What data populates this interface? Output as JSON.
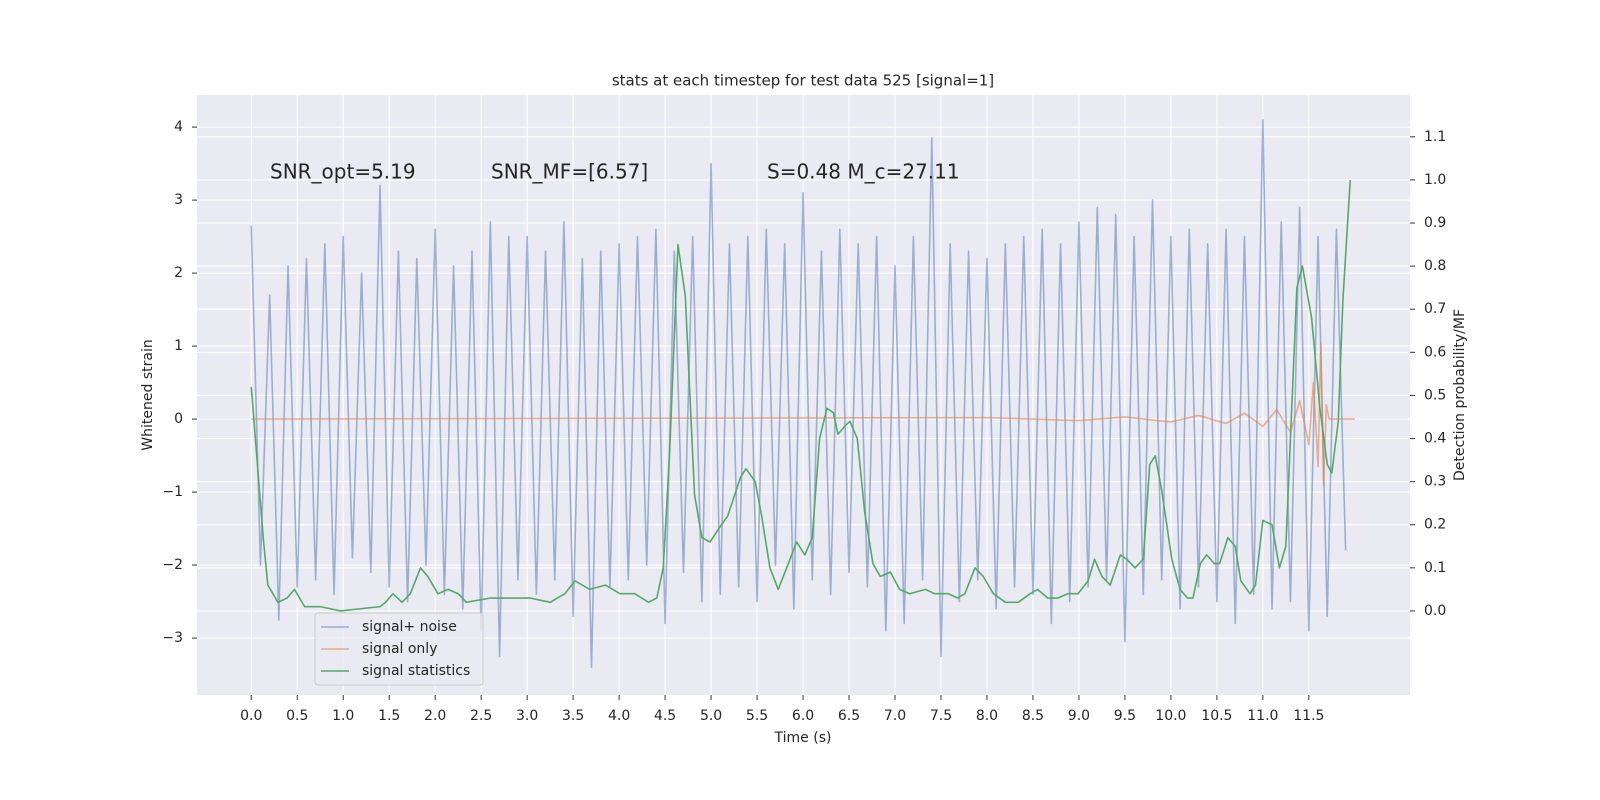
{
  "chart_data": {
    "type": "line",
    "title": "stats at each timestep for test data 525 [signal=1]",
    "x_label": "Time (s)",
    "y_label": "Whitened strain",
    "y2_label": "Detection probability/MF",
    "annotations": [
      "SNR_opt=5.19",
      "SNR_MF=[6.57]",
      "S=0.48   M_c=27.11"
    ],
    "xlim": [
      -0.59,
      12.6
    ],
    "ylim": [
      -3.78,
      4.44
    ],
    "y2lim": [
      -0.195,
      1.197
    ],
    "xticks": [
      {
        "value": 0,
        "label": "0.0"
      },
      0.5,
      {
        "value": 1,
        "label": "1.0"
      },
      1.5,
      {
        "value": 2,
        "label": "2.0"
      },
      2.5,
      {
        "value": 3,
        "label": "3.0"
      },
      3.5,
      {
        "value": 4,
        "label": "4.0"
      },
      4.5,
      {
        "value": 5,
        "label": "5.0"
      },
      5.5,
      {
        "value": 6,
        "label": "6.0"
      },
      6.5,
      {
        "value": 7,
        "label": "7.0"
      },
      7.5,
      {
        "value": 8,
        "label": "8.0"
      },
      8.5,
      {
        "value": 9,
        "label": "9.0"
      },
      9.5,
      {
        "value": 10,
        "label": "10.0"
      },
      10.5,
      {
        "value": 11,
        "label": "11.0"
      },
      11.5
    ],
    "yticks": [
      {
        "value": -3,
        "label": "−3"
      },
      {
        "value": -2,
        "label": "−2"
      },
      {
        "value": -1,
        "label": "−1"
      },
      0,
      1,
      2,
      3,
      4
    ],
    "y2ticks": [
      {
        "value": 0,
        "label": "0.0"
      },
      0.1,
      0.2,
      0.3,
      0.4,
      0.5,
      0.6,
      0.7,
      0.8,
      0.9,
      {
        "value": 1,
        "label": "1.0"
      },
      1.1
    ],
    "grid": true,
    "legend": "lower left",
    "series": [
      {
        "name": "signal+ noise",
        "color": "#4c72b0",
        "alpha": 0.5,
        "x": [
          0,
          0.1,
          0.2,
          0.3,
          0.4,
          0.5,
          0.6,
          0.7,
          0.8,
          0.9,
          1,
          1.1,
          1.2,
          1.3,
          1.4,
          1.5,
          1.6,
          1.7,
          1.8,
          1.9,
          2,
          2.1,
          2.2,
          2.3,
          2.4,
          2.5,
          2.6,
          2.7,
          2.8,
          2.9,
          3,
          3.1,
          3.2,
          3.3,
          3.4,
          3.5,
          3.6,
          3.7,
          3.8,
          3.9,
          4,
          4.1,
          4.2,
          4.3,
          4.4,
          4.5,
          4.6,
          4.7,
          4.8,
          4.9,
          5,
          5.1,
          5.2,
          5.3,
          5.4,
          5.5,
          5.6,
          5.7,
          5.8,
          5.9,
          6,
          6.1,
          6.2,
          6.3,
          6.4,
          6.5,
          6.6,
          6.7,
          6.8,
          6.9,
          7,
          7.1,
          7.2,
          7.3,
          7.4,
          7.5,
          7.6,
          7.7,
          7.8,
          7.9,
          8,
          8.1,
          8.2,
          8.3,
          8.4,
          8.5,
          8.6,
          8.7,
          8.8,
          8.9,
          9,
          9.1,
          9.2,
          9.3,
          9.4,
          9.5,
          9.6,
          9.7,
          9.8,
          9.9,
          10,
          10.1,
          10.2,
          10.3,
          10.4,
          10.5,
          10.6,
          10.7,
          10.8,
          10.9,
          11,
          11.1,
          11.2,
          11.3,
          11.4,
          11.5,
          11.6,
          11.7,
          11.8,
          11.9
        ],
        "values": [
          2.65,
          -2.0,
          1.7,
          -2.75,
          2.1,
          -2.3,
          2.2,
          -2.2,
          2.4,
          -2.4,
          2.5,
          -1.9,
          2.0,
          -2.1,
          3.2,
          -2.3,
          2.3,
          -2.5,
          2.2,
          -2.0,
          2.6,
          -2.4,
          2.1,
          -2.6,
          2.3,
          -2.9,
          2.7,
          -3.25,
          2.5,
          -2.2,
          2.5,
          -2.4,
          2.3,
          -2.2,
          2.7,
          -2.7,
          2.2,
          -3.4,
          2.3,
          -2.3,
          2.4,
          -2.2,
          2.5,
          -2.0,
          2.6,
          -2.8,
          2.3,
          -2.1,
          2.5,
          -2.5,
          3.5,
          -2.4,
          2.4,
          -2.3,
          2.5,
          -2.5,
          2.6,
          -2.0,
          2.4,
          -2.6,
          3.1,
          -2.2,
          2.3,
          -2.4,
          2.6,
          -2.1,
          2.4,
          -2.3,
          2.5,
          -2.9,
          2.1,
          -2.8,
          2.5,
          -2.2,
          3.85,
          -3.25,
          2.4,
          -2.5,
          2.3,
          -2.2,
          2.2,
          -2.6,
          2.4,
          -2.3,
          2.5,
          -2.4,
          2.6,
          -2.8,
          2.4,
          -2.5,
          2.7,
          -2.3,
          2.9,
          -2.2,
          2.8,
          -3.05,
          2.5,
          -2.4,
          3.0,
          -2.2,
          2.5,
          -2.6,
          2.6,
          -2.3,
          2.4,
          -2.5,
          2.6,
          -2.8,
          2.5,
          -2.4,
          4.1,
          -2.6,
          2.7,
          -2.5,
          2.9,
          -2.9,
          2.5,
          -2.7,
          2.6,
          -1.8
        ]
      },
      {
        "name": "signal only",
        "color": "#dd8452",
        "alpha": 0.6,
        "x": [
          0,
          8,
          9,
          9.5,
          10,
          10.3,
          10.6,
          10.8,
          11,
          11.15,
          11.3,
          11.4,
          11.5,
          11.55,
          11.6,
          11.63,
          11.66,
          11.69,
          11.72,
          11.8,
          12
        ],
        "values": [
          0,
          0.02,
          -0.02,
          0.03,
          -0.04,
          0.05,
          -0.06,
          0.08,
          -0.1,
          0.13,
          -0.18,
          0.25,
          -0.35,
          0.5,
          -0.65,
          1.05,
          -0.9,
          0.2,
          0,
          0,
          0
        ]
      },
      {
        "name": "signal statistics",
        "color": "#55a868",
        "alpha": 1,
        "axis": "y2",
        "x": [
          0,
          0.13,
          0.18,
          0.29,
          0.39,
          0.47,
          0.58,
          0.75,
          0.97,
          1.4,
          1.46,
          1.54,
          1.64,
          1.73,
          1.84,
          1.92,
          2.03,
          2.14,
          2.25,
          2.34,
          2.6,
          2.82,
          3.03,
          3.25,
          3.41,
          3.52,
          3.68,
          3.85,
          4.01,
          4.17,
          4.32,
          4.41,
          4.48,
          4.55,
          4.64,
          4.72,
          4.82,
          4.9,
          4.99,
          5.08,
          5.18,
          5.32,
          5.38,
          5.48,
          5.55,
          5.64,
          5.73,
          5.84,
          5.93,
          6.02,
          6.1,
          6.18,
          6.26,
          6.33,
          6.38,
          6.46,
          6.51,
          6.59,
          6.67,
          6.76,
          6.84,
          6.95,
          7.05,
          7.16,
          7.33,
          7.43,
          7.58,
          7.68,
          7.76,
          7.87,
          7.96,
          8.07,
          8.2,
          8.34,
          8.47,
          8.55,
          8.66,
          8.77,
          8.88,
          8.99,
          9.1,
          9.17,
          9.25,
          9.34,
          9.45,
          9.52,
          9.61,
          9.7,
          9.77,
          9.83,
          9.9,
          10.01,
          10.1,
          10.18,
          10.24,
          10.32,
          10.39,
          10.47,
          10.53,
          10.62,
          10.7,
          10.76,
          10.86,
          10.92,
          11,
          11.1,
          11.18,
          11.25,
          11.37,
          11.43,
          11.53,
          11.62,
          11.7,
          11.75,
          11.82,
          11.87,
          11.95
        ],
        "values": [
          0.52,
          0.17,
          0.06,
          0.02,
          0.03,
          0.05,
          0.01,
          0.01,
          0,
          0.01,
          0.02,
          0.04,
          0.02,
          0.04,
          0.1,
          0.08,
          0.04,
          0.05,
          0.04,
          0.02,
          0.03,
          0.03,
          0.03,
          0.02,
          0.04,
          0.07,
          0.05,
          0.06,
          0.04,
          0.04,
          0.02,
          0.03,
          0.1,
          0.37,
          0.85,
          0.73,
          0.27,
          0.17,
          0.16,
          0.19,
          0.22,
          0.31,
          0.33,
          0.3,
          0.22,
          0.1,
          0.05,
          0.11,
          0.16,
          0.13,
          0.17,
          0.4,
          0.47,
          0.46,
          0.41,
          0.43,
          0.44,
          0.4,
          0.23,
          0.11,
          0.08,
          0.09,
          0.05,
          0.04,
          0.05,
          0.04,
          0.04,
          0.03,
          0.04,
          0.1,
          0.08,
          0.04,
          0.02,
          0.02,
          0.04,
          0.05,
          0.03,
          0.03,
          0.04,
          0.04,
          0.07,
          0.12,
          0.08,
          0.06,
          0.13,
          0.12,
          0.1,
          0.12,
          0.34,
          0.36,
          0.28,
          0.12,
          0.05,
          0.03,
          0.03,
          0.11,
          0.13,
          0.11,
          0.11,
          0.17,
          0.15,
          0.07,
          0.04,
          0.06,
          0.21,
          0.2,
          0.1,
          0.15,
          0.75,
          0.8,
          0.68,
          0.47,
          0.34,
          0.32,
          0.44,
          0.72,
          1.0
        ]
      }
    ]
  }
}
